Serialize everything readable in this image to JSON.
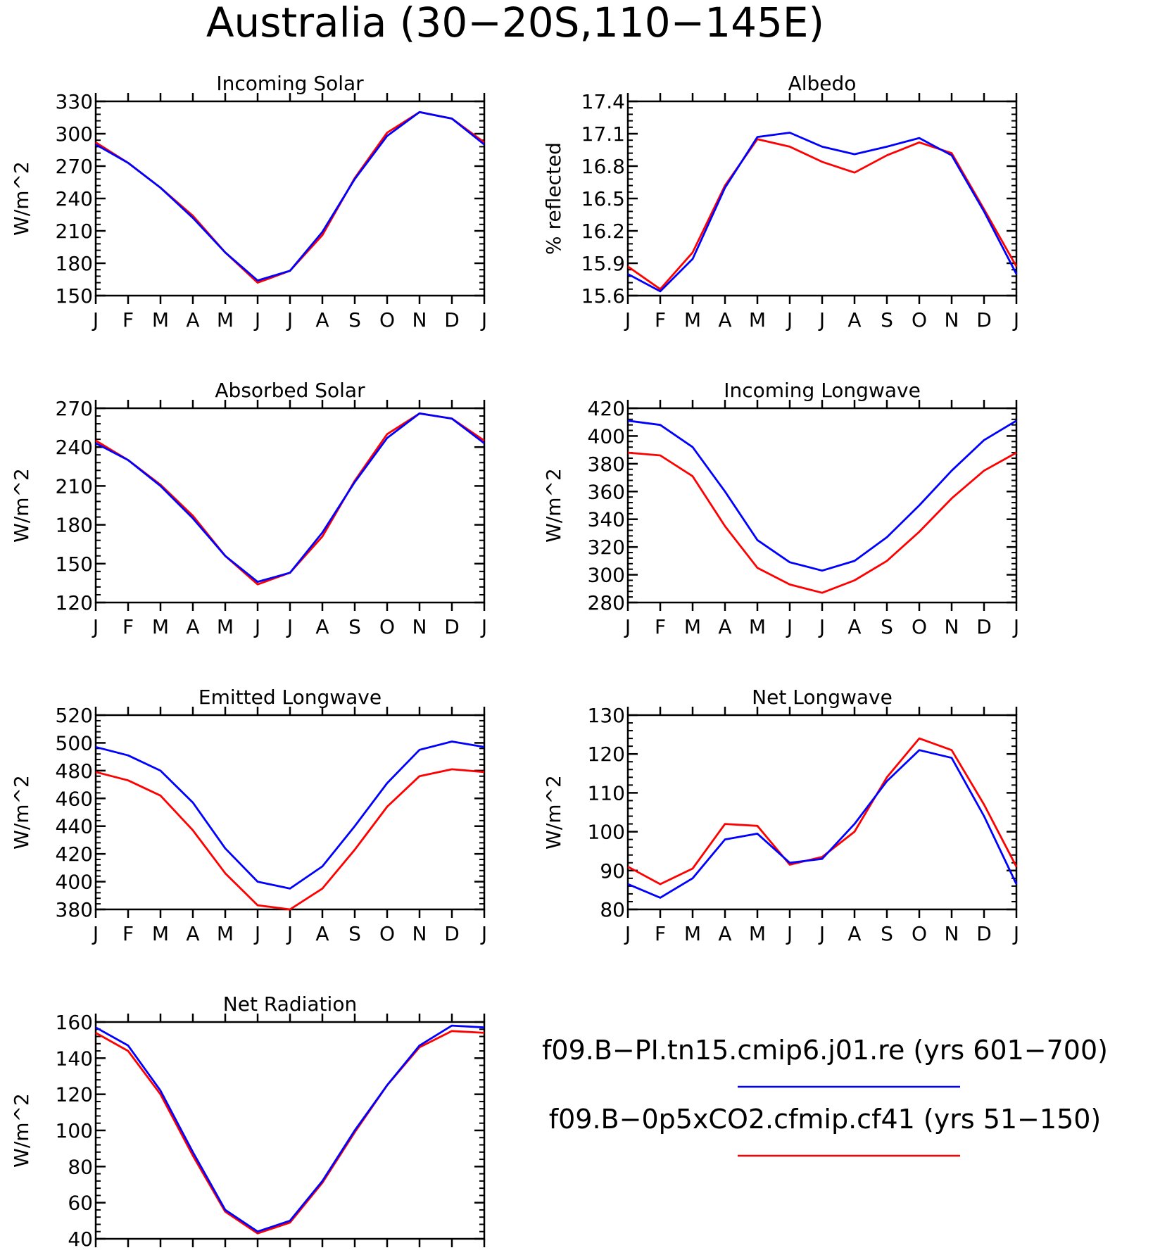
{
  "title": "Australia (30−20S,110−145E)",
  "legend": {
    "entries": [
      {
        "label": "f09.B−PI.tn15.cmip6.j01.re (yrs 601−700)",
        "color": "#0000ff"
      },
      {
        "label": "f09.B−0p5xCO2.cfmip.cf41 (yrs 51−150)",
        "color": "#ff0000"
      }
    ]
  },
  "chart_data": [
    {
      "type": "line",
      "title": "Incoming Solar",
      "ylabel": "W/m^2",
      "ylim": [
        150,
        330
      ],
      "yticks": [
        150,
        180,
        210,
        240,
        270,
        300,
        330
      ],
      "ytick_labels": [
        "150",
        "180",
        "210",
        "240",
        "270",
        "300",
        "330"
      ],
      "categories": [
        "J",
        "F",
        "M",
        "A",
        "M",
        "J",
        "J",
        "A",
        "S",
        "O",
        "N",
        "D",
        "J"
      ],
      "series": [
        {
          "color": "#ff0000",
          "values": [
            292,
            273,
            250,
            224,
            190,
            162,
            173,
            206,
            259,
            301,
            320,
            314,
            292
          ]
        },
        {
          "color": "#0000ff",
          "values": [
            290,
            273,
            250,
            222,
            190,
            164,
            173,
            209,
            258,
            298,
            320,
            314,
            290
          ]
        }
      ]
    },
    {
      "type": "line",
      "title": "Albedo",
      "ylabel": "% reflected",
      "ylim": [
        15.6,
        17.4
      ],
      "yticks": [
        15.6,
        15.9,
        16.2,
        16.5,
        16.8,
        17.1,
        17.4
      ],
      "ytick_labels": [
        "15.6",
        "15.9",
        "16.2",
        "16.5",
        "16.8",
        "17.1",
        "17.4"
      ],
      "categories": [
        "J",
        "F",
        "M",
        "A",
        "M",
        "J",
        "J",
        "A",
        "S",
        "O",
        "N",
        "D",
        "J"
      ],
      "series": [
        {
          "color": "#ff0000",
          "values": [
            15.87,
            15.66,
            16.0,
            16.62,
            17.05,
            16.98,
            16.84,
            16.74,
            16.9,
            17.02,
            16.92,
            16.4,
            15.87
          ]
        },
        {
          "color": "#0000ff",
          "values": [
            15.8,
            15.64,
            15.94,
            16.6,
            17.07,
            17.11,
            16.98,
            16.91,
            16.98,
            17.06,
            16.9,
            16.38,
            15.8
          ]
        }
      ]
    },
    {
      "type": "line",
      "title": "Absorbed Solar",
      "ylabel": "W/m^2",
      "ylim": [
        120,
        270
      ],
      "yticks": [
        120,
        150,
        180,
        210,
        240,
        270
      ],
      "ytick_labels": [
        "120",
        "150",
        "180",
        "210",
        "240",
        "270"
      ],
      "categories": [
        "J",
        "F",
        "M",
        "A",
        "M",
        "J",
        "J",
        "A",
        "S",
        "O",
        "N",
        "D",
        "J"
      ],
      "series": [
        {
          "color": "#ff0000",
          "values": [
            245,
            230,
            211,
            187,
            156,
            134,
            143,
            171,
            214,
            250,
            266,
            262,
            245
          ]
        },
        {
          "color": "#0000ff",
          "values": [
            243,
            230,
            210,
            185,
            156,
            136,
            143,
            174,
            213,
            247,
            266,
            262,
            243
          ]
        }
      ]
    },
    {
      "type": "line",
      "title": "Incoming Longwave",
      "ylabel": "W/m^2",
      "ylim": [
        280,
        420
      ],
      "yticks": [
        280,
        300,
        320,
        340,
        360,
        380,
        400,
        420
      ],
      "ytick_labels": [
        "280",
        "300",
        "320",
        "340",
        "360",
        "380",
        "400",
        "420"
      ],
      "categories": [
        "J",
        "F",
        "M",
        "A",
        "M",
        "J",
        "J",
        "A",
        "S",
        "O",
        "N",
        "D",
        "J"
      ],
      "series": [
        {
          "color": "#ff0000",
          "values": [
            388,
            386,
            371,
            335,
            305,
            293,
            287,
            296,
            310,
            331,
            355,
            375,
            388
          ]
        },
        {
          "color": "#0000ff",
          "values": [
            411,
            408,
            392,
            360,
            325,
            309,
            303,
            310,
            327,
            350,
            375,
            397,
            411
          ]
        }
      ]
    },
    {
      "type": "line",
      "title": "Emitted Longwave",
      "ylabel": "W/m^2",
      "ylim": [
        380,
        520
      ],
      "yticks": [
        380,
        400,
        420,
        440,
        460,
        480,
        500,
        520
      ],
      "ytick_labels": [
        "380",
        "400",
        "420",
        "440",
        "460",
        "480",
        "500",
        "520"
      ],
      "categories": [
        "J",
        "F",
        "M",
        "A",
        "M",
        "J",
        "J",
        "A",
        "S",
        "O",
        "N",
        "D",
        "J"
      ],
      "series": [
        {
          "color": "#ff0000",
          "values": [
            479,
            473,
            462,
            437,
            406,
            383,
            380,
            395,
            423,
            454,
            476,
            481,
            479
          ]
        },
        {
          "color": "#0000ff",
          "values": [
            497,
            491,
            480,
            457,
            424,
            400,
            395,
            411,
            440,
            471,
            495,
            501,
            497
          ]
        }
      ]
    },
    {
      "type": "line",
      "title": "Net Longwave",
      "ylabel": "W/m^2",
      "ylim": [
        80,
        130
      ],
      "yticks": [
        80,
        90,
        100,
        110,
        120,
        130
      ],
      "ytick_labels": [
        "80",
        "90",
        "100",
        "110",
        "120",
        "130"
      ],
      "categories": [
        "J",
        "F",
        "M",
        "A",
        "M",
        "J",
        "J",
        "A",
        "S",
        "O",
        "N",
        "D",
        "J"
      ],
      "series": [
        {
          "color": "#ff0000",
          "values": [
            91,
            86.5,
            90.5,
            102,
            101.5,
            91.5,
            93.5,
            100,
            114,
            124,
            121,
            107,
            91
          ]
        },
        {
          "color": "#0000ff",
          "values": [
            86.5,
            83,
            88,
            98,
            99.5,
            92,
            93,
            102,
            113,
            121,
            119,
            104,
            86.5
          ]
        }
      ]
    },
    {
      "type": "line",
      "title": "Net Radiation",
      "ylabel": "W/m^2",
      "ylim": [
        40,
        160
      ],
      "yticks": [
        40,
        60,
        80,
        100,
        120,
        140,
        160
      ],
      "ytick_labels": [
        "40",
        "60",
        "80",
        "100",
        "120",
        "140",
        "160"
      ],
      "categories": [
        "J",
        "F",
        "M",
        "A",
        "M",
        "J",
        "J",
        "A",
        "S",
        "O",
        "N",
        "D",
        "J"
      ],
      "series": [
        {
          "color": "#ff0000",
          "values": [
            154,
            144,
            120,
            86,
            55,
            43,
            49,
            71,
            99,
            125,
            146,
            155,
            154
          ]
        },
        {
          "color": "#0000ff",
          "values": [
            157,
            147,
            122,
            88,
            56,
            44,
            50,
            72,
            100,
            125,
            147,
            158,
            157
          ]
        }
      ]
    }
  ]
}
